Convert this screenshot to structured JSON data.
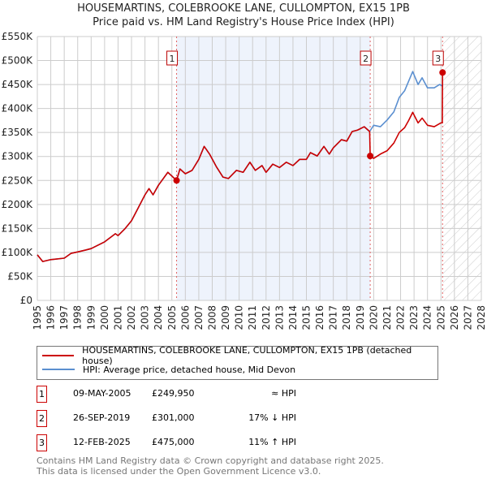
{
  "chart_data": {
    "type": "line",
    "title": "HOUSEMARTINS, COLEBROOKE LANE, CULLOMPTON, EX15 1PB",
    "subtitle": "Price paid vs. HM Land Registry's House Price Index (HPI)",
    "xlim": [
      1995,
      2028
    ],
    "ylim": [
      0,
      550000
    ],
    "x_ticks": [
      "1995",
      "1996",
      "1997",
      "1998",
      "1999",
      "2000",
      "2001",
      "2002",
      "2003",
      "2004",
      "2005",
      "2006",
      "2007",
      "2008",
      "2009",
      "2010",
      "2011",
      "2012",
      "2013",
      "2014",
      "2015",
      "2016",
      "2017",
      "2018",
      "2019",
      "2020",
      "2021",
      "2022",
      "2023",
      "2024",
      "2025",
      "2026",
      "2027",
      "2028"
    ],
    "y_ticks": [
      "£0",
      "£50K",
      "£100K",
      "£150K",
      "£200K",
      "£250K",
      "£300K",
      "£350K",
      "£400K",
      "£450K",
      "£500K",
      "£550K"
    ],
    "grid": true,
    "series": [
      {
        "name": "HPI: Average price, detached house, Mid Devon",
        "color": "#5b8fd0",
        "x": [
          1995.0,
          1995.4,
          1996,
          1997,
          1997.5,
          1998,
          1998.6,
          1999,
          2000,
          2000.8,
          2001,
          2001.5,
          2002,
          2002.5,
          2003,
          2003.3,
          2003.6,
          2004,
          2004.7,
          2005.2,
          2005.35,
          2005.6,
          2006,
          2006.5,
          2007,
          2007.4,
          2007.8,
          2008.3,
          2008.8,
          2009.2,
          2009.8,
          2010.3,
          2010.8,
          2011.2,
          2011.7,
          2012,
          2012.5,
          2013,
          2013.5,
          2014,
          2014.5,
          2015,
          2015.3,
          2015.8,
          2016.3,
          2016.7,
          2017,
          2017.6,
          2018,
          2018.4,
          2018.8,
          2019.3,
          2019.7,
          2020,
          2020.5,
          2021,
          2021.5,
          2021.9,
          2022.3,
          2022.6,
          2022.9,
          2023.3,
          2023.6,
          2024,
          2024.5,
          2024.9,
          2025.1
        ],
        "y": [
          95000,
          81000,
          85000,
          88000,
          98000,
          101000,
          105000,
          108000,
          122000,
          139000,
          135000,
          149000,
          166000,
          193000,
          220000,
          233000,
          220000,
          240000,
          267000,
          254000,
          250000,
          274000,
          264000,
          271000,
          294000,
          321000,
          305000,
          279000,
          257000,
          254000,
          271000,
          267000,
          288000,
          271000,
          281000,
          267000,
          284000,
          277000,
          288000,
          281000,
          294000,
          294000,
          308000,
          301000,
          321000,
          305000,
          318000,
          335000,
          332000,
          352000,
          355000,
          362000,
          352000,
          365000,
          362000,
          376000,
          393000,
          423000,
          437000,
          457000,
          477000,
          450000,
          464000,
          443000,
          443000,
          450000,
          447000
        ]
      },
      {
        "name": "HOUSEMARTINS, COLEBROOKE LANE, CULLOMPTON, EX15 1PB (detached house)",
        "color": "#cc0000",
        "x": [
          1995.0,
          1995.4,
          1996,
          1997,
          1997.5,
          1998,
          1998.6,
          1999,
          2000,
          2000.8,
          2001,
          2001.5,
          2002,
          2002.5,
          2003,
          2003.3,
          2003.6,
          2004,
          2004.7,
          2005.2,
          2005.35,
          2005.6,
          2006,
          2006.5,
          2007,
          2007.4,
          2007.8,
          2008.3,
          2008.8,
          2009.2,
          2009.8,
          2010.3,
          2010.8,
          2011.2,
          2011.7,
          2012,
          2012.5,
          2013,
          2013.5,
          2014,
          2014.5,
          2015,
          2015.3,
          2015.8,
          2016.3,
          2016.7,
          2017,
          2017.6,
          2018,
          2018.4,
          2018.8,
          2019.3,
          2019.7,
          2019.74,
          2020,
          2020.5,
          2021,
          2021.5,
          2021.9,
          2022.3,
          2022.6,
          2022.9,
          2023.3,
          2023.6,
          2024,
          2024.5,
          2025.0,
          2025.1,
          2025.12
        ],
        "y": [
          95000,
          81000,
          85000,
          88000,
          98000,
          101000,
          105000,
          108000,
          122000,
          139000,
          135000,
          149000,
          166000,
          193000,
          220000,
          233000,
          220000,
          240000,
          267000,
          254000,
          250000,
          274000,
          264000,
          271000,
          294000,
          321000,
          305000,
          279000,
          257000,
          254000,
          271000,
          267000,
          288000,
          271000,
          281000,
          267000,
          284000,
          277000,
          288000,
          281000,
          294000,
          294000,
          308000,
          301000,
          321000,
          305000,
          318000,
          335000,
          332000,
          352000,
          355000,
          362000,
          352000,
          301000,
          296000,
          305000,
          312000,
          328000,
          350000,
          360000,
          375000,
          392000,
          370000,
          380000,
          365000,
          362000,
          370000,
          370000,
          475000
        ]
      }
    ],
    "sales": [
      {
        "label": "1",
        "x": 2005.35,
        "y": 249950,
        "date": "09-MAY-2005",
        "price": "£249,950",
        "hpi": "≈ HPI"
      },
      {
        "label": "2",
        "x": 2019.74,
        "y": 301000,
        "date": "26-SEP-2019",
        "price": "£301,000",
        "hpi": "17% ↓ HPI"
      },
      {
        "label": "3",
        "x": 2025.12,
        "y": 475000,
        "date": "12-FEB-2025",
        "price": "£475,000",
        "hpi": "11% ↑ HPI"
      }
    ],
    "shaded_range": [
      2005.35,
      2019.74
    ],
    "hatched_from": 2025.12,
    "legend_placement": "bottom"
  },
  "footer": {
    "line1": "Contains HM Land Registry data © Crown copyright and database right 2025.",
    "line2": "This data is licensed under the Open Government Licence v3.0."
  }
}
